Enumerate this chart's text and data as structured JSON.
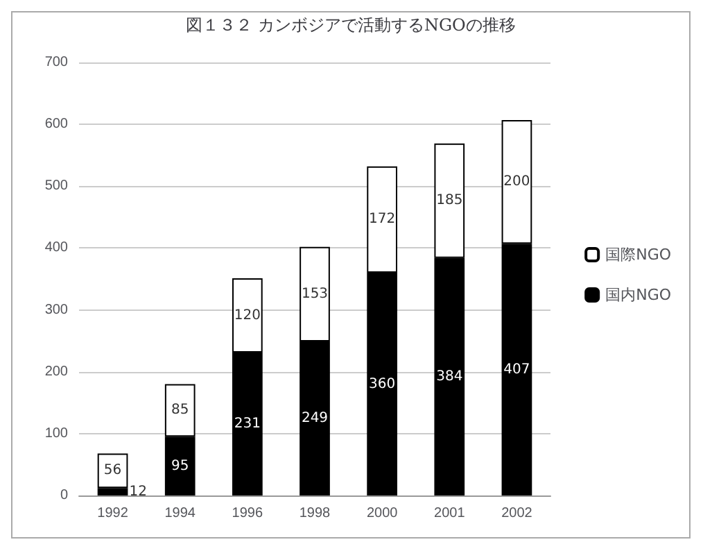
{
  "chart_data": {
    "type": "bar",
    "title": "図１３２ カンボジアで活動するNGOの推移",
    "categories": [
      "1992",
      "1994",
      "1996",
      "1998",
      "2000",
      "2001",
      "2002"
    ],
    "stacked": true,
    "series": [
      {
        "name": "国内NGO",
        "color": "#000000",
        "values": [
          12,
          95,
          231,
          249,
          360,
          384,
          407
        ]
      },
      {
        "name": "国際NGO",
        "color": "#ffffff",
        "values": [
          56,
          85,
          120,
          153,
          172,
          185,
          200
        ]
      }
    ],
    "ylim": [
      0,
      700
    ],
    "yticks": [
      0,
      100,
      200,
      300,
      400,
      500,
      600,
      700
    ],
    "grid": "y",
    "legend": "right",
    "data_labels": true
  }
}
